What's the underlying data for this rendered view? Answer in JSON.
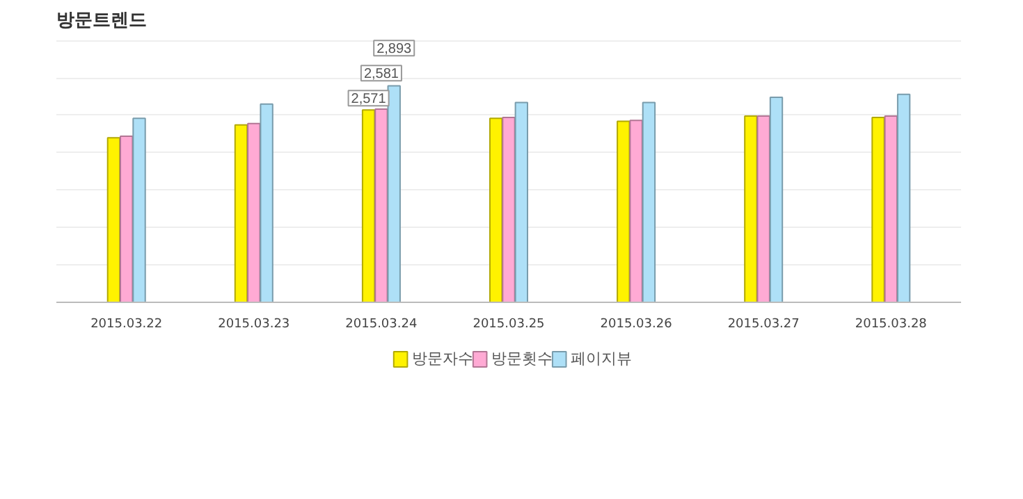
{
  "chart_data": {
    "type": "bar",
    "title": "방문트렌드",
    "categories": [
      "2015.03.22",
      "2015.03.23",
      "2015.03.24",
      "2015.03.25",
      "2015.03.26",
      "2015.03.27",
      "2015.03.28"
    ],
    "series": [
      {
        "name": "방문자수",
        "color": "#fff200",
        "values": [
          2200,
          2370,
          2571,
          2460,
          2420,
          2490,
          2470
        ],
        "value_labels": [
          null,
          null,
          "2,571",
          null,
          null,
          null,
          null
        ]
      },
      {
        "name": "방문횟수",
        "color": "#ffaad4",
        "values": [
          2220,
          2390,
          2581,
          2470,
          2430,
          2490,
          2490
        ],
        "value_labels": [
          null,
          null,
          "2,581",
          null,
          null,
          null,
          null
        ]
      },
      {
        "name": "페이지뷰",
        "color": "#aee0f7",
        "values": [
          2460,
          2650,
          2893,
          2670,
          2670,
          2740,
          2780
        ],
        "value_labels": [
          null,
          null,
          "2,893",
          null,
          null,
          null,
          null
        ]
      }
    ],
    "grid": "y",
    "legend": "bottom"
  }
}
